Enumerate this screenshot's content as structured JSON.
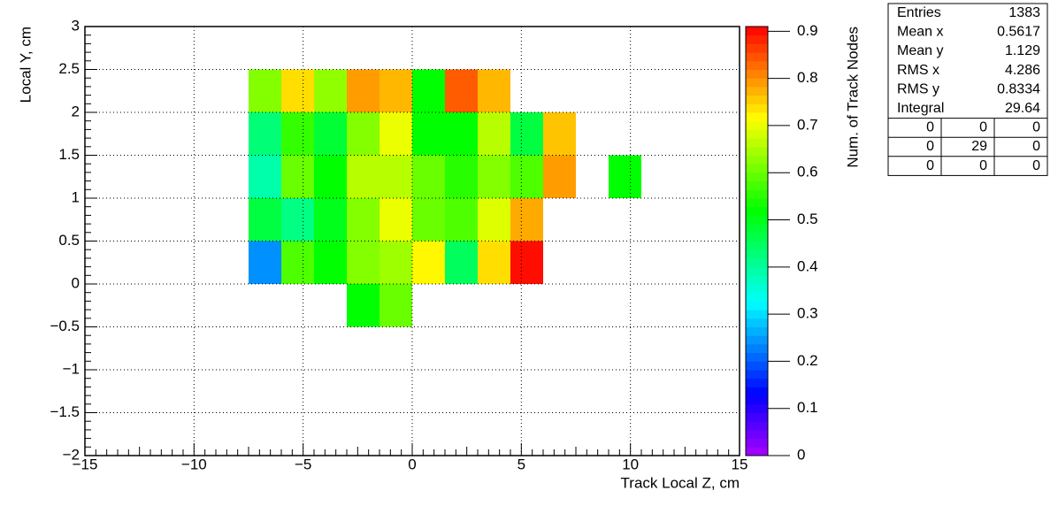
{
  "chart_data": {
    "type": "heatmap",
    "x_label": "Track Local Z, cm",
    "y_label": "Local Y, cm",
    "z_label": "Num. of Track Nodes",
    "palette": "rainbow",
    "grid": true,
    "xlim": [
      -15,
      15
    ],
    "xticks": [
      {
        "value": -15,
        "label": "−15"
      },
      {
        "value": -10,
        "label": "−10"
      },
      {
        "value": -5,
        "label": "−5"
      },
      0,
      5,
      10,
      15
    ],
    "ylim": [
      -2,
      3
    ],
    "yticks": [
      {
        "value": -2,
        "label": "−2"
      },
      {
        "value": -1.5,
        "label": "−1.5"
      },
      {
        "value": -1,
        "label": "−1"
      },
      {
        "value": -0.5,
        "label": "−0.5"
      },
      0,
      0.5,
      1,
      1.5,
      2,
      2.5,
      3
    ],
    "zlim": [
      0,
      0.91
    ],
    "zticks": [
      0,
      0.1,
      0.2,
      0.3,
      0.4,
      0.5,
      0.6,
      0.7,
      0.8,
      0.9
    ],
    "x_edges": [
      -7.5,
      -6,
      -4.5,
      -3,
      -1.5,
      0,
      1.5,
      3,
      4.5,
      6,
      7.5,
      9,
      10.5
    ],
    "y_edges": [
      -0.5,
      0,
      0.5,
      1,
      1.5,
      2,
      2.5
    ],
    "z": [
      [
        null,
        null,
        null,
        0.52,
        0.6,
        null,
        null,
        null,
        null,
        null,
        null,
        null
      ],
      [
        0.24,
        0.58,
        0.52,
        0.62,
        0.64,
        0.72,
        0.45,
        0.74,
        0.9,
        null,
        null,
        null
      ],
      [
        0.47,
        0.42,
        0.5,
        0.62,
        0.7,
        0.6,
        0.58,
        0.69,
        0.78,
        null,
        null,
        null
      ],
      [
        0.39,
        0.6,
        0.52,
        0.66,
        0.66,
        0.6,
        0.55,
        0.62,
        0.58,
        0.79,
        null,
        0.52
      ],
      [
        0.43,
        0.56,
        0.48,
        0.62,
        0.7,
        0.52,
        0.52,
        0.66,
        0.47,
        0.76,
        null,
        null
      ],
      [
        0.62,
        0.74,
        0.63,
        0.79,
        0.77,
        0.52,
        0.84,
        0.77,
        null,
        null,
        null,
        null
      ]
    ],
    "stats": {
      "rows": [
        [
          "Entries",
          1383
        ],
        [
          "Mean x",
          0.5617
        ],
        [
          "Mean y",
          1.129
        ],
        [
          "RMS x",
          4.286
        ],
        [
          "RMS y",
          0.8334
        ],
        [
          "Integral",
          29.64
        ]
      ],
      "grid": [
        [
          0,
          0,
          0
        ],
        [
          0,
          29,
          0
        ],
        [
          0,
          0,
          0
        ]
      ]
    }
  }
}
